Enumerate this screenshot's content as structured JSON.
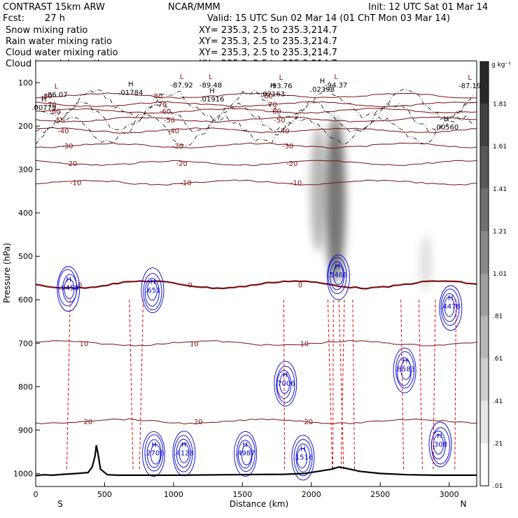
{
  "header": {
    "model": "CONTRAST 15km ARW",
    "center": "NCAR/MMM",
    "init": "Init: 12 UTC Sat 01 Mar 14",
    "fcst_label": "Fcst:",
    "fcst_value": "27 h",
    "valid": "Valid: 15 UTC Sun 02 Mar 14 (01 ChT Mon 03 Mar 14)",
    "xy_text": "XY= 235.3,  2.5 to 235.3,214.7"
  },
  "colors": {
    "snow": "#000000",
    "rain": "#dd0000",
    "cloud_water": "#0000cc",
    "cloud_ice": "#000000",
    "temperature_contour": "#7a1010",
    "terrain": "#000000"
  },
  "chart_data": {
    "type": "cross-section",
    "fields": [
      {
        "name": "Snow mixing ratio",
        "color_key": "snow",
        "style": "grayscale fill"
      },
      {
        "name": "Rain water mixing ratio",
        "color_key": "rain",
        "style": "dashed contour"
      },
      {
        "name": "Cloud water mixing ratio",
        "color_key": "cloud_water",
        "style": "solid contour"
      },
      {
        "name": "Cloud ice mixing ratio",
        "color_key": "cloud_ice",
        "style": "dash-dot contour"
      }
    ],
    "xlabel": "Distance (km)",
    "ylabel": "Pressure (hPa)",
    "xlim": [
      0,
      3200
    ],
    "ylim": [
      50,
      1030
    ],
    "x_ticks": [
      0,
      500,
      1000,
      1500,
      2000,
      2500,
      3000
    ],
    "y_ticks": [
      100,
      200,
      300,
      400,
      500,
      600,
      700,
      800,
      900,
      1000
    ],
    "x_end_labels": {
      "left": "S",
      "right": "N"
    },
    "colorbar": {
      "unit": "g kg⁻¹",
      "levels": [
        ".01",
        ".21",
        ".41",
        ".61",
        ".81",
        "1.01",
        "1.21",
        "1.41",
        "1.61",
        "1.81"
      ],
      "min": 0.01,
      "max": 1.91
    },
    "temperature_contours": [
      {
        "value": -80,
        "p": 130
      },
      {
        "value": -70,
        "p": 150
      },
      {
        "value": -60,
        "p": 165
      },
      {
        "value": -50,
        "p": 185
      },
      {
        "value": -40,
        "p": 210
      },
      {
        "value": -30,
        "p": 245
      },
      {
        "value": -20,
        "p": 285
      },
      {
        "value": -10,
        "p": 330
      },
      {
        "value": 0,
        "p": 565
      },
      {
        "value": 10,
        "p": 700
      },
      {
        "value": 20,
        "p": 880
      }
    ],
    "terrain": {
      "x": [
        0,
        60,
        120,
        200,
        300,
        380,
        410,
        430,
        440,
        455,
        470,
        520,
        600,
        700,
        800,
        1000,
        1400,
        1800,
        1950,
        2050,
        2150,
        2200,
        2250,
        2350,
        2500,
        2700,
        2900,
        3100,
        3200
      ],
      "p": [
        1005,
        1003,
        1004,
        1002,
        1000,
        998,
        985,
        960,
        935,
        960,
        990,
        1003,
        1004,
        1004,
        1004,
        1004,
        1003,
        1002,
        1000,
        995,
        990,
        985,
        988,
        995,
        1000,
        1003,
        1004,
        1004,
        1004
      ]
    },
    "snow_max_regions": [
      {
        "x": 2050,
        "p_top": 200,
        "p_bottom": 490,
        "max": 0.7
      },
      {
        "x": 2175,
        "p_top": 180,
        "p_bottom": 560,
        "max": 1.3
      },
      {
        "x": 2830,
        "p_top": 450,
        "p_bottom": 580,
        "max": 0.3
      }
    ],
    "labels_temperature_mins": [
      {
        "x": 150,
        "p": 130,
        "text": "-86.07"
      },
      {
        "x": 1060,
        "p": 108,
        "text": "-87.92"
      },
      {
        "x": 1270,
        "p": 108,
        "text": "-89.48"
      },
      {
        "x": 1780,
        "p": 110,
        "text": "-93.76"
      },
      {
        "x": 2180,
        "p": 108,
        "text": "-94.37"
      },
      {
        "x": 3150,
        "p": 110,
        "text": "-87.19"
      }
    ],
    "labels_ice_highs": [
      {
        "x": 60,
        "p": 160,
        "text": ".00779"
      },
      {
        "x": 690,
        "p": 125,
        "text": ".01784"
      },
      {
        "x": 1280,
        "p": 140,
        "text": ".01916"
      },
      {
        "x": 1720,
        "p": 128,
        "text": ".02163"
      },
      {
        "x": 2080,
        "p": 118,
        "text": ".02398"
      },
      {
        "x": 2980,
        "p": 205,
        "text": ".00560"
      }
    ],
    "labels_cloud_water_highs": [
      {
        "x": 240,
        "p": 575,
        "text": ".9458"
      },
      {
        "x": 850,
        "p": 580,
        "text": ".651"
      },
      {
        "x": 1810,
        "p": 795,
        "text": ".7006"
      },
      {
        "x": 2190,
        "p": 545,
        "text": ".5468"
      },
      {
        "x": 2680,
        "p": 762,
        "text": ".8583"
      },
      {
        "x": 3010,
        "p": 617,
        "text": ".4478"
      },
      {
        "x": 2930,
        "p": 935,
        "text": ".308"
      },
      {
        "x": 860,
        "p": 955,
        "text": ".2706"
      },
      {
        "x": 1075,
        "p": 955,
        "text": ".4128"
      },
      {
        "x": 1520,
        "p": 955,
        "text": ".4987"
      },
      {
        "x": 1940,
        "p": 965,
        "text": ".1516"
      }
    ]
  }
}
